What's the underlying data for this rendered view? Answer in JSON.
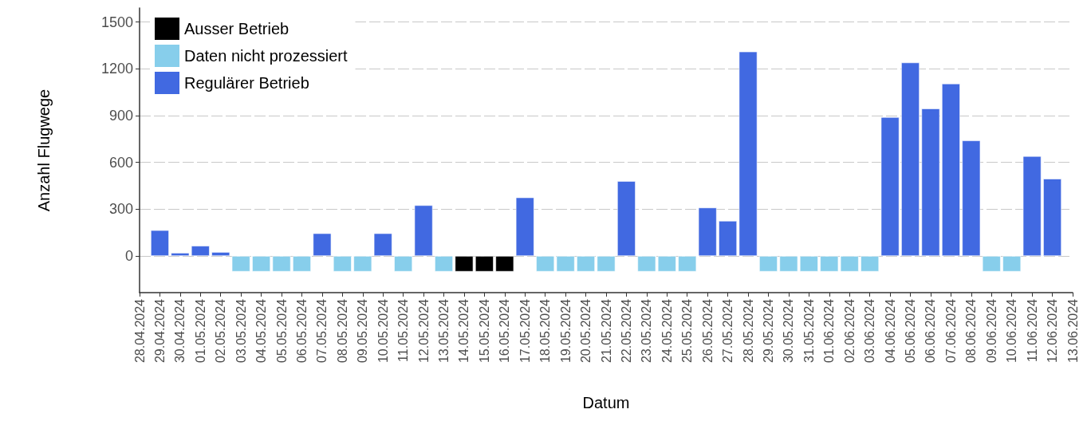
{
  "chart_data": {
    "type": "bar",
    "xlabel": "Datum",
    "ylabel": "Anzahl Flugwege",
    "x": [
      "2024-04-29",
      "2024-04-30",
      "2024-05-01",
      "2024-05-02",
      "2024-05-03",
      "2024-05-04",
      "2024-05-05",
      "2024-05-06",
      "2024-05-07",
      "2024-05-08",
      "2024-05-09",
      "2024-05-10",
      "2024-05-11",
      "2024-05-12",
      "2024-05-13",
      "2024-05-14",
      "2024-05-15",
      "2024-05-16",
      "2024-05-17",
      "2024-05-18",
      "2024-05-19",
      "2024-05-20",
      "2024-05-21",
      "2024-05-22",
      "2024-05-23",
      "2024-05-24",
      "2024-05-25",
      "2024-05-26",
      "2024-05-27",
      "2024-05-28",
      "2024-05-29",
      "2024-05-30",
      "2024-05-31",
      "2024-06-01",
      "2024-06-02",
      "2024-06-03",
      "2024-06-04",
      "2024-06-05",
      "2024-06-06",
      "2024-06-07",
      "2024-06-08",
      "2024-06-09",
      "2024-06-10",
      "2024-06-11",
      "2024-06-12"
    ],
    "series": [
      {
        "name": "Ausser Betrieb",
        "color": "#000000",
        "values": [
          null,
          null,
          null,
          null,
          null,
          null,
          null,
          null,
          null,
          null,
          null,
          null,
          null,
          null,
          null,
          -100,
          -100,
          -100,
          null,
          null,
          null,
          null,
          null,
          null,
          null,
          null,
          null,
          null,
          null,
          null,
          null,
          null,
          null,
          null,
          null,
          null,
          null,
          null,
          null,
          null,
          null,
          null,
          null,
          null,
          null
        ]
      },
      {
        "name": "Daten nicht prozessiert",
        "color": "#87ceeb",
        "values": [
          null,
          null,
          null,
          null,
          -100,
          -100,
          -100,
          -100,
          null,
          -100,
          -100,
          null,
          -100,
          null,
          -100,
          null,
          null,
          null,
          null,
          -100,
          -100,
          -100,
          -100,
          null,
          -100,
          -100,
          -100,
          null,
          null,
          null,
          -100,
          -100,
          -100,
          -100,
          -100,
          -100,
          null,
          null,
          null,
          null,
          null,
          -100,
          -100,
          null,
          null
        ]
      },
      {
        "name": "Regulärer Betrieb",
        "color": "#4169e1",
        "values": [
          165,
          20,
          65,
          25,
          null,
          null,
          null,
          null,
          145,
          null,
          null,
          145,
          null,
          325,
          null,
          null,
          null,
          null,
          375,
          null,
          null,
          null,
          null,
          480,
          null,
          null,
          null,
          310,
          225,
          1310,
          null,
          null,
          null,
          null,
          null,
          null,
          890,
          1240,
          945,
          1105,
          740,
          null,
          null,
          640,
          495
        ]
      }
    ],
    "xlim": [
      "2024-04-28",
      "2024-06-13"
    ],
    "xticks": [
      {
        "value": "2024-04-28",
        "label": "28.04.2024"
      },
      {
        "value": "2024-04-29",
        "label": "29.04.2024"
      },
      {
        "value": "2024-04-30",
        "label": "30.04.2024"
      },
      {
        "value": "2024-05-01",
        "label": "01.05.2024"
      },
      {
        "value": "2024-05-02",
        "label": "02.05.2024"
      },
      {
        "value": "2024-05-03",
        "label": "03.05.2024"
      },
      {
        "value": "2024-05-04",
        "label": "04.05.2024"
      },
      {
        "value": "2024-05-05",
        "label": "05.05.2024"
      },
      {
        "value": "2024-05-06",
        "label": "06.05.2024"
      },
      {
        "value": "2024-05-07",
        "label": "07.05.2024"
      },
      {
        "value": "2024-05-08",
        "label": "08.05.2024"
      },
      {
        "value": "2024-05-09",
        "label": "09.05.2024"
      },
      {
        "value": "2024-05-10",
        "label": "10.05.2024"
      },
      {
        "value": "2024-05-11",
        "label": "11.05.2024"
      },
      {
        "value": "2024-05-12",
        "label": "12.05.2024"
      },
      {
        "value": "2024-05-13",
        "label": "13.05.2024"
      },
      {
        "value": "2024-05-14",
        "label": "14.05.2024"
      },
      {
        "value": "2024-05-15",
        "label": "15.05.2024"
      },
      {
        "value": "2024-05-16",
        "label": "16.05.2024"
      },
      {
        "value": "2024-05-17",
        "label": "17.05.2024"
      },
      {
        "value": "2024-05-18",
        "label": "18.05.2024"
      },
      {
        "value": "2024-05-19",
        "label": "19.05.2024"
      },
      {
        "value": "2024-05-20",
        "label": "20.05.2024"
      },
      {
        "value": "2024-05-21",
        "label": "21.05.2024"
      },
      {
        "value": "2024-05-22",
        "label": "22.05.2024"
      },
      {
        "value": "2024-05-23",
        "label": "23.05.2024"
      },
      {
        "value": "2024-05-24",
        "label": "24.05.2024"
      },
      {
        "value": "2024-05-25",
        "label": "25.05.2024"
      },
      {
        "value": "2024-05-26",
        "label": "26.05.2024"
      },
      {
        "value": "2024-05-27",
        "label": "27.05.2024"
      },
      {
        "value": "2024-05-28",
        "label": "28.05.2024"
      },
      {
        "value": "2024-05-29",
        "label": "29.05.2024"
      },
      {
        "value": "2024-05-30",
        "label": "30.05.2024"
      },
      {
        "value": "2024-05-31",
        "label": "31.05.2024"
      },
      {
        "value": "2024-06-01",
        "label": "01.06.2024"
      },
      {
        "value": "2024-06-02",
        "label": "02.06.2024"
      },
      {
        "value": "2024-06-03",
        "label": "03.06.2024"
      },
      {
        "value": "2024-06-04",
        "label": "04.06.2024"
      },
      {
        "value": "2024-06-05",
        "label": "05.06.2024"
      },
      {
        "value": "2024-06-06",
        "label": "06.06.2024"
      },
      {
        "value": "2024-06-07",
        "label": "07.06.2024"
      },
      {
        "value": "2024-06-08",
        "label": "08.06.2024"
      },
      {
        "value": "2024-06-09",
        "label": "09.06.2024"
      },
      {
        "value": "2024-06-10",
        "label": "10.06.2024"
      },
      {
        "value": "2024-06-11",
        "label": "11.06.2024"
      },
      {
        "value": "2024-06-12",
        "label": "12.06.2024"
      },
      {
        "value": "2024-06-13",
        "label": "13.06.2024"
      }
    ],
    "ylim": [
      -235,
      1590
    ],
    "yticks": [
      0,
      300,
      600,
      900,
      1200,
      1500
    ],
    "grid": "y",
    "legend": "top left"
  }
}
